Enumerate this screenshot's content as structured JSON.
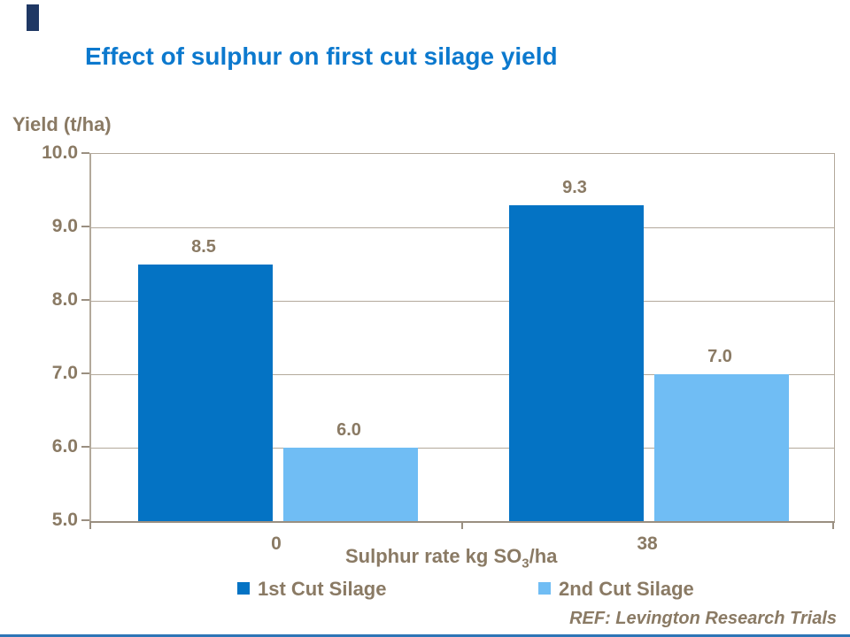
{
  "colors": {
    "title": "#0c79ce",
    "text": "#8a7a64",
    "grid": "#b3a99b",
    "axis": "#9a8f81",
    "accent_bar": "#1f3864",
    "bottom_line": "#2e75b6",
    "series1": "#0473c4",
    "series2": "#70bdf4"
  },
  "chart_data": {
    "type": "bar",
    "title": "Effect of sulphur on first cut silage yield",
    "ylabel": "Yield (t/ha)",
    "xlabel": "Sulphur rate kg SO3/ha",
    "xlabel_parts": {
      "prefix": "Sulphur rate kg SO",
      "sub": "3",
      "suffix": "/ha"
    },
    "categories": [
      "0",
      "38"
    ],
    "series": [
      {
        "name": "1st Cut Silage",
        "values": [
          8.5,
          9.3
        ],
        "color": "#0473c4"
      },
      {
        "name": "2nd Cut Silage",
        "values": [
          6.0,
          7.0
        ],
        "color": "#70bdf4"
      }
    ],
    "ylim": [
      5.0,
      10.0
    ],
    "ytick_labels": [
      "5.0",
      "6.0",
      "7.0",
      "8.0",
      "9.0",
      "10.0"
    ],
    "grid": "horizontal",
    "legend_position": "bottom",
    "data_labels": true,
    "ref_note": "REF: Levington Research Trials"
  }
}
